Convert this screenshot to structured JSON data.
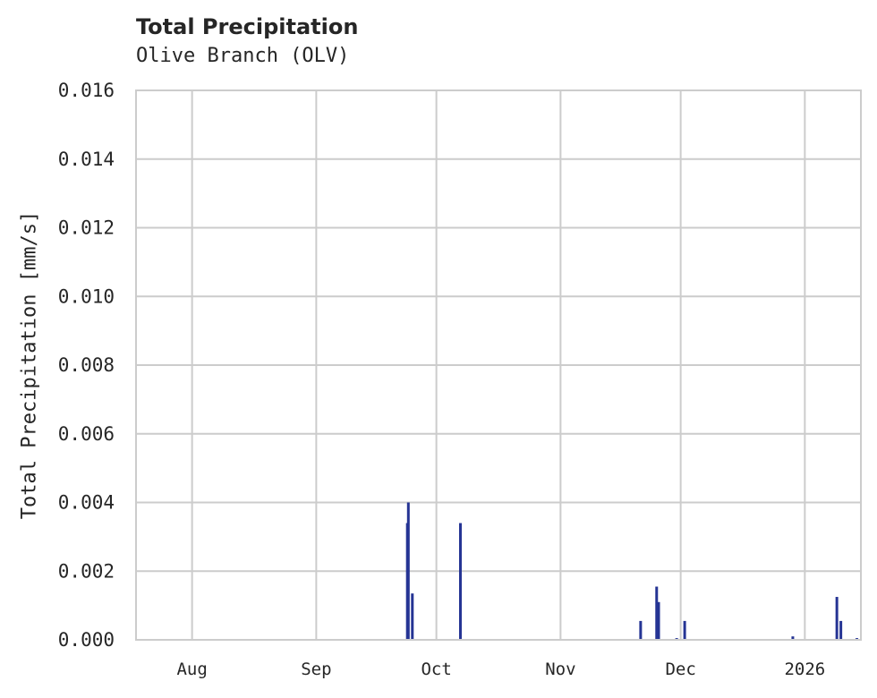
{
  "header": {
    "title": "Total Precipitation",
    "subtitle": "Olive Branch (OLV)"
  },
  "colors": {
    "bar": "#253494",
    "grid": "#cccccc",
    "background": "#ffffff",
    "text": "#262626"
  },
  "chart_data": {
    "type": "bar",
    "title": "Total Precipitation",
    "subtitle": "Olive Branch (OLV)",
    "xlabel": "",
    "ylabel": "Total Precipitation [mm/s]",
    "ylim": [
      0.0,
      0.016
    ],
    "yticks": [
      "0.000",
      "0.002",
      "0.004",
      "0.006",
      "0.008",
      "0.010",
      "0.012",
      "0.014",
      "0.016"
    ],
    "xticks": [
      "Aug",
      "Sep",
      "Oct",
      "Nov",
      "Dec",
      "2026"
    ],
    "xlim": [
      "2025-07-18",
      "2026-01-15"
    ],
    "grid": true,
    "legend": null,
    "x": [
      "2025-09-23T18:00",
      "2025-09-24T00:00",
      "2025-09-25T00:00",
      "2025-10-07T00:00",
      "2025-11-21T00:00",
      "2025-11-25T00:00",
      "2025-11-25T12:00",
      "2025-11-30T00:00",
      "2025-12-02T00:00",
      "2025-12-29T00:00",
      "2026-01-09T00:00",
      "2026-01-10T00:00",
      "2026-01-14T00:00"
    ],
    "values": [
      0.0034,
      0.004,
      0.00135,
      0.0034,
      0.00055,
      0.00155,
      0.0011,
      5e-05,
      0.00055,
      0.0001,
      0.00125,
      0.00055,
      5e-05
    ]
  }
}
